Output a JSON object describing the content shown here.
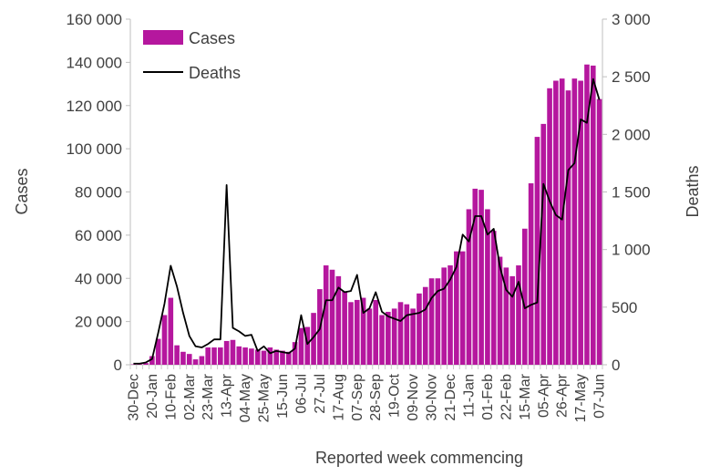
{
  "chart_data": {
    "type": "bar+line",
    "xlabel": "Reported week commencing",
    "ylabel_left": "Cases",
    "ylabel_right": "Deaths",
    "ylim_left": [
      0,
      160000
    ],
    "ylim_right": [
      0,
      3000
    ],
    "yticks_left": [
      "0",
      "20 000",
      "40 000",
      "60 000",
      "80 000",
      "100 000",
      "120 000",
      "140 000",
      "160 000"
    ],
    "yticks_right": [
      "0",
      "500",
      "1 000",
      "1 500",
      "2 000",
      "2 500",
      "3 000"
    ],
    "x_tick_labels": [
      "30-Dec",
      "20-Jan",
      "10-Feb",
      "02-Mar",
      "23-Mar",
      "13-Apr",
      "04-May",
      "25-May",
      "15-Jun",
      "06-Jul",
      "27-Jul",
      "17-Aug",
      "07-Sep",
      "28-Sep",
      "19-Oct",
      "09-Nov",
      "30-Nov",
      "21-Dec",
      "11-Jan",
      "01-Feb",
      "22-Feb",
      "15-Mar",
      "05-Apr",
      "26-Apr",
      "17-May",
      "07-Jun"
    ],
    "legend": {
      "position": "top-left",
      "cases_label": "Cases",
      "deaths_label": "Deaths"
    },
    "colors": {
      "cases": "#b5179e",
      "deaths": "#000000",
      "axis": "#bfbfbf",
      "text": "#404040"
    },
    "cases": [
      200,
      300,
      800,
      4000,
      12000,
      23000,
      31000,
      9000,
      6000,
      5000,
      2500,
      4000,
      8000,
      8000,
      8000,
      11000,
      11500,
      8500,
      8000,
      7500,
      7000,
      6500,
      8000,
      7000,
      6500,
      6000,
      10500,
      17000,
      17500,
      24000,
      35000,
      46000,
      44000,
      41000,
      34000,
      29000,
      30000,
      31000,
      26000,
      30000,
      23000,
      24500,
      26000,
      29000,
      28000,
      26000,
      33000,
      36000,
      40000,
      40000,
      45000,
      46000,
      52500,
      52500,
      72000,
      81500,
      81000,
      72000,
      62000,
      50000,
      45000,
      41000,
      46000,
      63000,
      84000,
      105500,
      111500,
      128000,
      131500,
      132500,
      127000,
      132500,
      131500,
      139000,
      138500,
      123000
    ],
    "deaths": [
      10,
      10,
      20,
      50,
      280,
      530,
      860,
      680,
      450,
      250,
      160,
      150,
      180,
      220,
      220,
      1560,
      320,
      290,
      250,
      260,
      120,
      160,
      100,
      120,
      110,
      100,
      140,
      430,
      180,
      240,
      310,
      560,
      560,
      670,
      630,
      640,
      780,
      450,
      490,
      630,
      460,
      420,
      400,
      380,
      430,
      440,
      450,
      480,
      580,
      640,
      660,
      740,
      850,
      1130,
      1070,
      1290,
      1290,
      1130,
      1180,
      850,
      650,
      590,
      720,
      490,
      520,
      540,
      1570,
      1420,
      1300,
      1260,
      1690,
      1750,
      2130,
      2100,
      2480,
      2300
    ]
  }
}
